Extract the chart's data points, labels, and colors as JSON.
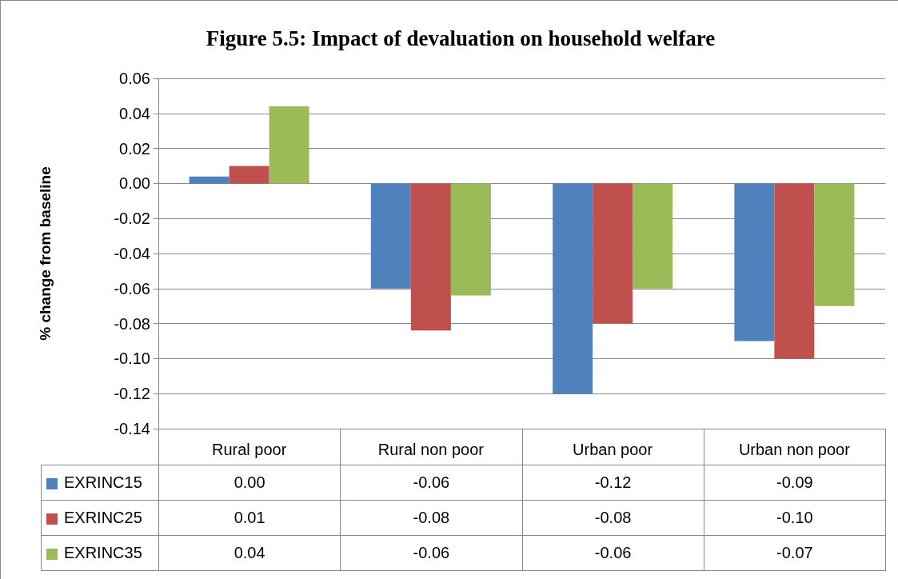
{
  "chart_data": {
    "type": "bar",
    "title": "Figure 5.5: Impact of devaluation on household welfare",
    "ylabel": "% change from baseline",
    "categories": [
      "Rural poor",
      "Rural non poor",
      "Urban poor",
      "Urban non poor"
    ],
    "series": [
      {
        "name": "EXRINC15",
        "color": "#4f81bd",
        "values": [
          0.004,
          -0.06,
          -0.12,
          -0.09
        ],
        "value_labels": [
          "0.00",
          "-0.06",
          "-0.12",
          "-0.09"
        ]
      },
      {
        "name": "EXRINC25",
        "color": "#c0504d",
        "values": [
          0.01,
          -0.084,
          -0.08,
          -0.1
        ],
        "value_labels": [
          "0.01",
          "-0.08",
          "-0.08",
          "-0.10"
        ]
      },
      {
        "name": "EXRINC35",
        "color": "#9bbb59",
        "values": [
          0.044,
          -0.064,
          -0.06,
          -0.07
        ],
        "value_labels": [
          "0.04",
          "-0.06",
          "-0.06",
          "-0.07"
        ]
      }
    ],
    "ylim": [
      -0.14,
      0.06
    ],
    "yticks": [
      {
        "value": 0.06,
        "label": "0.06"
      },
      {
        "value": 0.04,
        "label": "0.04"
      },
      {
        "value": 0.02,
        "label": "0.02"
      },
      {
        "value": 0,
        "label": "0.00"
      },
      {
        "value": -0.02,
        "label": "-0.02"
      },
      {
        "value": -0.04,
        "label": "-0.04"
      },
      {
        "value": -0.06,
        "label": "-0.06"
      },
      {
        "value": -0.08,
        "label": "-0.08"
      },
      {
        "value": -0.1,
        "label": "-0.10"
      },
      {
        "value": -0.12,
        "label": "-0.12"
      },
      {
        "value": -0.14,
        "label": "-0.14"
      }
    ],
    "grid": "y",
    "legend": "bottom left"
  }
}
